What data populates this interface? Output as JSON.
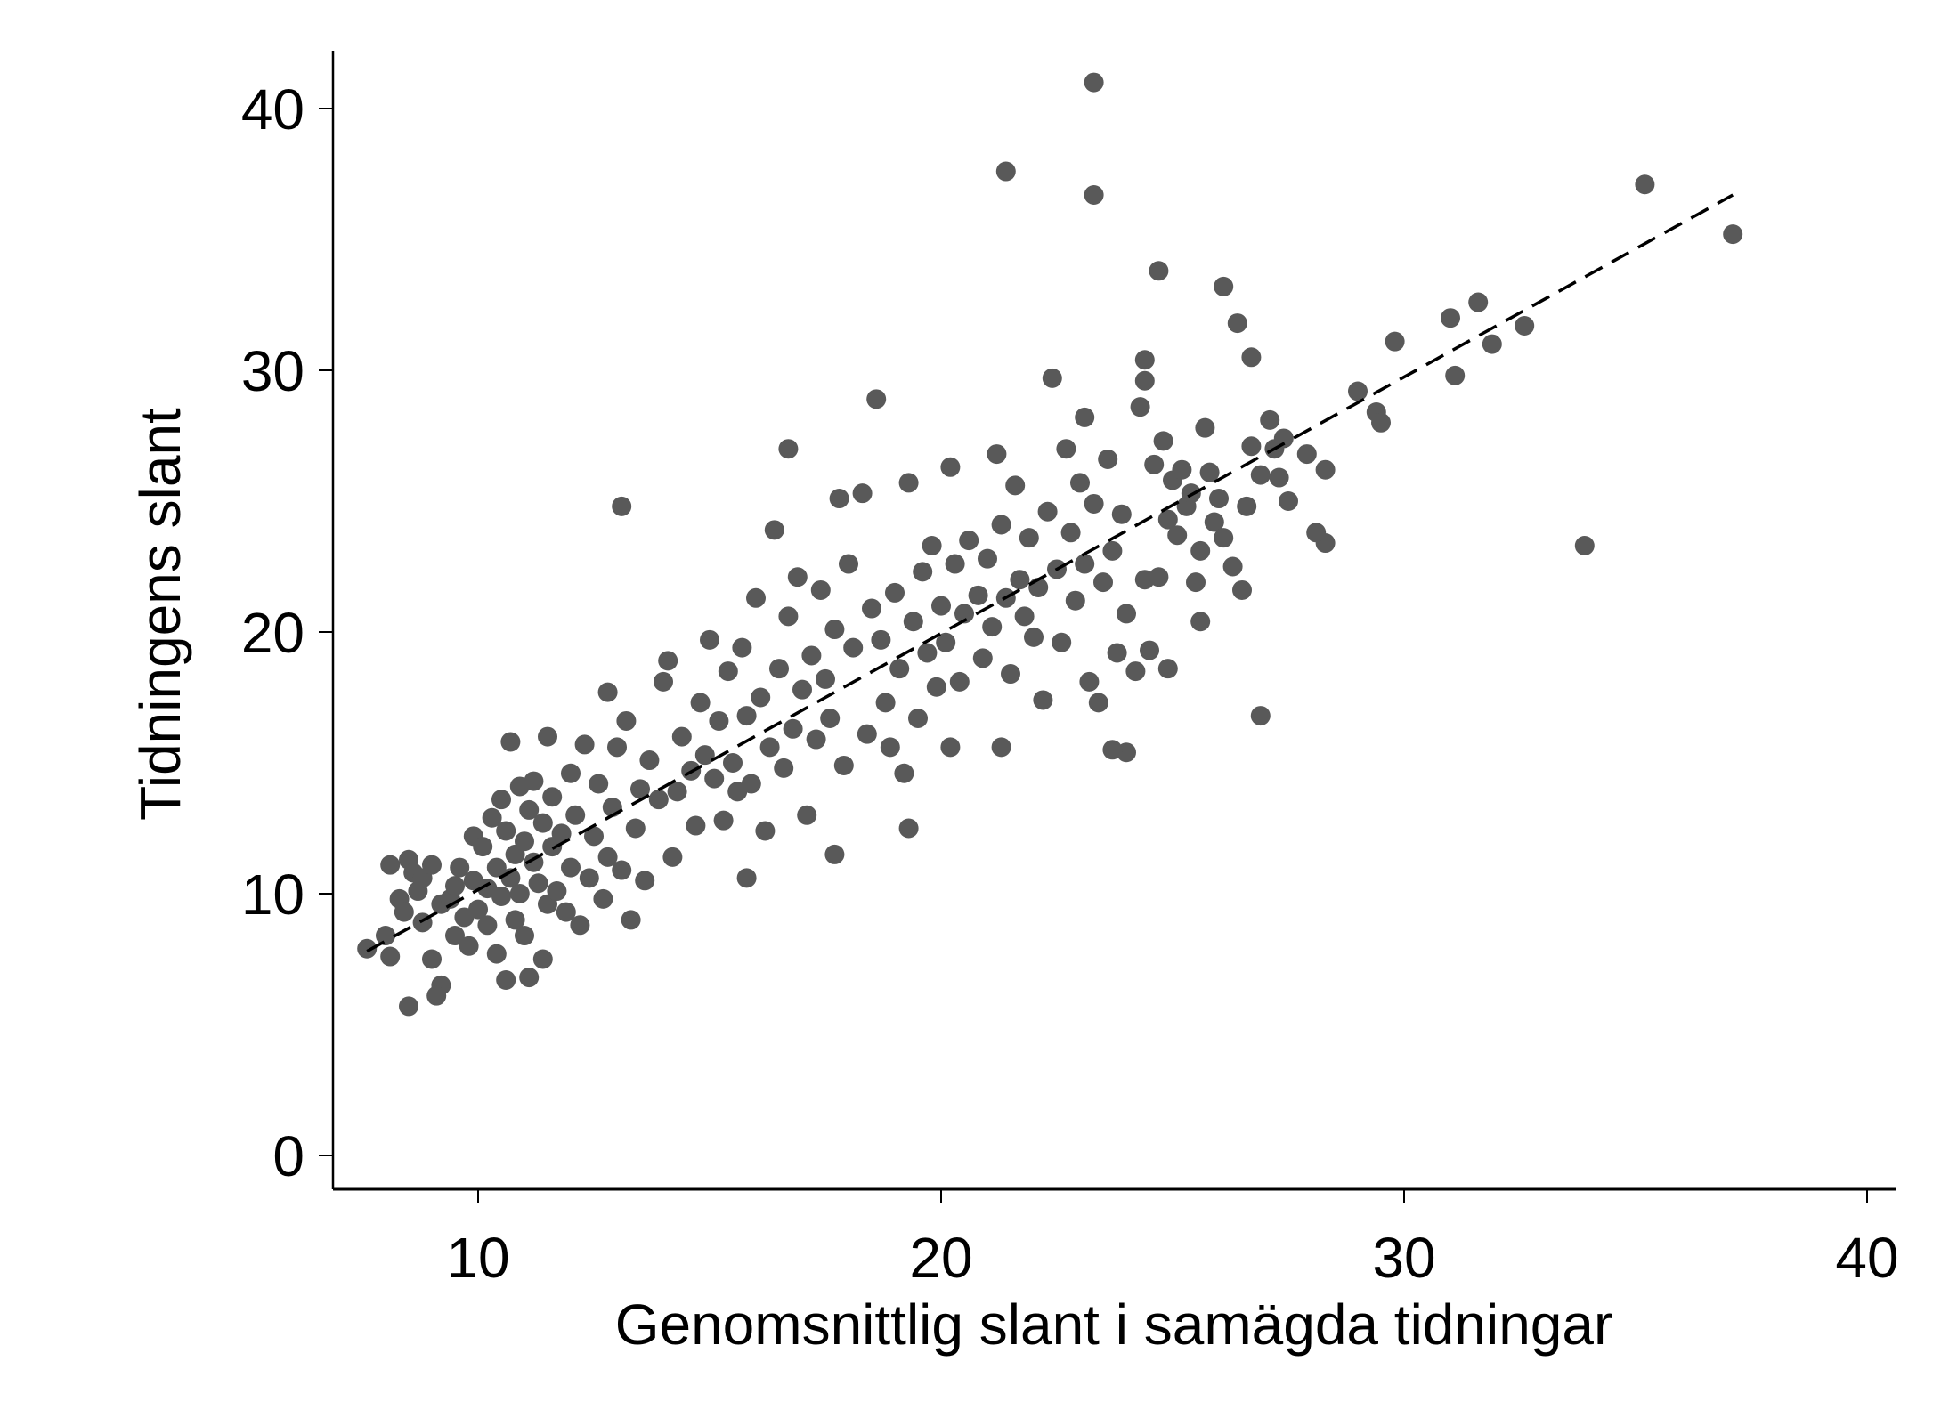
{
  "chart_data": {
    "type": "scatter",
    "title": "",
    "xlabel": "Genomsnittlig slant i samägda tidningar",
    "ylabel": "Tidningens slant",
    "xlim": [
      7,
      40.5
    ],
    "ylim": [
      -1.5,
      42
    ],
    "xticks": [
      10,
      20,
      30,
      40
    ],
    "yticks": [
      0,
      10,
      20,
      30,
      40
    ],
    "xtick_labels": [
      "10",
      "20",
      "30",
      "40"
    ],
    "ytick_labels": [
      "0",
      "10",
      "20",
      "30",
      "40"
    ],
    "grid": false,
    "legend": "none",
    "colors": {
      "points": "#595959",
      "fit_line": "#000000"
    },
    "fit_line": {
      "style": "dashed",
      "x": [
        7.6,
        37.1
      ],
      "y": [
        7.8,
        36.7
      ]
    },
    "points": [
      [
        23.3,
        41.0
      ],
      [
        21.4,
        37.6
      ],
      [
        23.3,
        36.7
      ],
      [
        35.2,
        37.1
      ],
      [
        37.1,
        35.2
      ],
      [
        24.7,
        33.8
      ],
      [
        26.1,
        33.2
      ],
      [
        31.6,
        32.6
      ],
      [
        31.0,
        32.0
      ],
      [
        32.6,
        31.7
      ],
      [
        31.9,
        31.0
      ],
      [
        29.8,
        31.1
      ],
      [
        31.1,
        29.8
      ],
      [
        29.0,
        29.2
      ],
      [
        29.4,
        28.4
      ],
      [
        29.5,
        28.0
      ],
      [
        18.6,
        28.9
      ],
      [
        22.4,
        29.7
      ],
      [
        24.4,
        30.4
      ],
      [
        24.4,
        29.6
      ],
      [
        26.7,
        30.5
      ],
      [
        26.4,
        31.8
      ],
      [
        23.1,
        28.2
      ],
      [
        16.7,
        27.0
      ],
      [
        13.1,
        24.8
      ],
      [
        33.9,
        23.3
      ],
      [
        26.9,
        16.8
      ],
      [
        24.0,
        15.4
      ],
      [
        23.7,
        15.5
      ],
      [
        15.8,
        10.6
      ],
      [
        8.5,
        5.7
      ],
      [
        9.2,
        6.5
      ],
      [
        17.7,
        11.5
      ],
      [
        19.3,
        12.5
      ],
      [
        28.3,
        23.4
      ],
      [
        28.1,
        23.8
      ],
      [
        25.6,
        20.4
      ],
      [
        24.9,
        18.6
      ],
      [
        21.3,
        15.6
      ],
      [
        20.2,
        15.6
      ],
      [
        7.6,
        7.9
      ],
      [
        8.0,
        8.4
      ],
      [
        8.1,
        7.6
      ],
      [
        8.1,
        11.1
      ],
      [
        8.3,
        9.8
      ],
      [
        8.4,
        9.3
      ],
      [
        8.5,
        11.3
      ],
      [
        8.6,
        10.8
      ],
      [
        8.7,
        10.1
      ],
      [
        8.8,
        10.6
      ],
      [
        8.8,
        8.9
      ],
      [
        9.0,
        11.1
      ],
      [
        9.0,
        7.5
      ],
      [
        9.1,
        6.1
      ],
      [
        9.2,
        9.6
      ],
      [
        9.4,
        9.8
      ],
      [
        9.5,
        10.3
      ],
      [
        9.5,
        8.4
      ],
      [
        9.6,
        11.0
      ],
      [
        9.7,
        9.1
      ],
      [
        9.8,
        8.0
      ],
      [
        9.9,
        10.5
      ],
      [
        9.9,
        12.2
      ],
      [
        10.0,
        9.4
      ],
      [
        10.1,
        11.8
      ],
      [
        10.2,
        10.2
      ],
      [
        10.2,
        8.8
      ],
      [
        10.3,
        12.9
      ],
      [
        10.4,
        7.7
      ],
      [
        10.4,
        11.0
      ],
      [
        10.5,
        9.9
      ],
      [
        10.5,
        13.6
      ],
      [
        10.6,
        6.7
      ],
      [
        10.6,
        12.4
      ],
      [
        10.7,
        10.6
      ],
      [
        10.7,
        15.8
      ],
      [
        10.8,
        11.5
      ],
      [
        10.8,
        9.0
      ],
      [
        10.9,
        14.1
      ],
      [
        10.9,
        10.0
      ],
      [
        11.0,
        12.0
      ],
      [
        11.0,
        8.4
      ],
      [
        11.1,
        13.2
      ],
      [
        11.1,
        6.8
      ],
      [
        11.2,
        11.2
      ],
      [
        11.2,
        14.3
      ],
      [
        11.3,
        10.4
      ],
      [
        11.4,
        12.7
      ],
      [
        11.4,
        7.5
      ],
      [
        11.5,
        9.6
      ],
      [
        11.5,
        16.0
      ],
      [
        11.6,
        11.8
      ],
      [
        11.6,
        13.7
      ],
      [
        11.7,
        10.1
      ],
      [
        11.8,
        12.3
      ],
      [
        11.9,
        9.3
      ],
      [
        12.0,
        14.6
      ],
      [
        12.0,
        11.0
      ],
      [
        12.1,
        13.0
      ],
      [
        12.2,
        8.8
      ],
      [
        12.3,
        15.7
      ],
      [
        12.4,
        10.6
      ],
      [
        12.5,
        12.2
      ],
      [
        12.6,
        14.2
      ],
      [
        12.7,
        9.8
      ],
      [
        12.8,
        11.4
      ],
      [
        12.8,
        17.7
      ],
      [
        12.9,
        13.3
      ],
      [
        13.0,
        15.6
      ],
      [
        13.1,
        10.9
      ],
      [
        13.2,
        16.6
      ],
      [
        13.3,
        9.0
      ],
      [
        13.4,
        12.5
      ],
      [
        13.5,
        14.0
      ],
      [
        13.6,
        10.5
      ],
      [
        13.7,
        15.1
      ],
      [
        13.9,
        13.6
      ],
      [
        14.0,
        18.1
      ],
      [
        14.1,
        18.9
      ],
      [
        14.2,
        11.4
      ],
      [
        14.3,
        13.9
      ],
      [
        14.4,
        16.0
      ],
      [
        14.6,
        14.7
      ],
      [
        14.7,
        12.6
      ],
      [
        14.8,
        17.3
      ],
      [
        14.9,
        15.3
      ],
      [
        15.0,
        19.7
      ],
      [
        15.1,
        14.4
      ],
      [
        15.2,
        16.6
      ],
      [
        15.3,
        12.8
      ],
      [
        15.4,
        18.5
      ],
      [
        15.5,
        15.0
      ],
      [
        15.6,
        13.9
      ],
      [
        15.7,
        19.4
      ],
      [
        15.8,
        16.8
      ],
      [
        15.9,
        14.2
      ],
      [
        16.0,
        21.3
      ],
      [
        16.1,
        17.5
      ],
      [
        16.2,
        12.4
      ],
      [
        16.3,
        15.6
      ],
      [
        16.4,
        23.9
      ],
      [
        16.5,
        18.6
      ],
      [
        16.6,
        14.8
      ],
      [
        16.7,
        20.6
      ],
      [
        16.8,
        16.3
      ],
      [
        16.9,
        22.1
      ],
      [
        17.0,
        17.8
      ],
      [
        17.1,
        13.0
      ],
      [
        17.2,
        19.1
      ],
      [
        17.3,
        15.9
      ],
      [
        17.4,
        21.6
      ],
      [
        17.5,
        18.2
      ],
      [
        17.6,
        16.7
      ],
      [
        17.7,
        20.1
      ],
      [
        17.8,
        25.1
      ],
      [
        17.9,
        14.9
      ],
      [
        18.0,
        22.6
      ],
      [
        18.1,
        19.4
      ],
      [
        18.3,
        25.3
      ],
      [
        18.4,
        16.1
      ],
      [
        18.5,
        20.9
      ],
      [
        18.7,
        19.7
      ],
      [
        18.8,
        17.3
      ],
      [
        18.9,
        15.6
      ],
      [
        19.0,
        21.5
      ],
      [
        19.1,
        18.6
      ],
      [
        19.2,
        14.6
      ],
      [
        19.3,
        25.7
      ],
      [
        19.4,
        20.4
      ],
      [
        19.5,
        16.7
      ],
      [
        19.6,
        22.3
      ],
      [
        19.7,
        19.2
      ],
      [
        19.8,
        23.3
      ],
      [
        19.9,
        17.9
      ],
      [
        20.0,
        21.0
      ],
      [
        20.1,
        19.6
      ],
      [
        20.2,
        26.3
      ],
      [
        20.3,
        22.6
      ],
      [
        20.4,
        18.1
      ],
      [
        20.5,
        20.7
      ],
      [
        20.6,
        23.5
      ],
      [
        20.8,
        21.4
      ],
      [
        20.9,
        19.0
      ],
      [
        21.0,
        22.8
      ],
      [
        21.1,
        20.2
      ],
      [
        21.2,
        26.8
      ],
      [
        21.3,
        24.1
      ],
      [
        21.4,
        21.3
      ],
      [
        21.5,
        18.4
      ],
      [
        21.6,
        25.6
      ],
      [
        21.7,
        22.0
      ],
      [
        21.8,
        20.6
      ],
      [
        21.9,
        23.6
      ],
      [
        22.0,
        19.8
      ],
      [
        22.1,
        21.7
      ],
      [
        22.2,
        17.4
      ],
      [
        22.3,
        24.6
      ],
      [
        22.5,
        22.4
      ],
      [
        22.6,
        19.6
      ],
      [
        22.7,
        27.0
      ],
      [
        22.8,
        23.8
      ],
      [
        22.9,
        21.2
      ],
      [
        23.0,
        25.7
      ],
      [
        23.1,
        22.6
      ],
      [
        23.2,
        18.1
      ],
      [
        23.3,
        24.9
      ],
      [
        23.4,
        17.3
      ],
      [
        23.5,
        21.9
      ],
      [
        23.6,
        26.6
      ],
      [
        23.7,
        23.1
      ],
      [
        23.8,
        19.2
      ],
      [
        23.9,
        24.5
      ],
      [
        24.0,
        20.7
      ],
      [
        24.2,
        18.5
      ],
      [
        24.3,
        28.6
      ],
      [
        24.4,
        22.0
      ],
      [
        24.5,
        19.3
      ],
      [
        24.6,
        26.4
      ],
      [
        24.7,
        22.1
      ],
      [
        24.8,
        27.3
      ],
      [
        24.9,
        24.3
      ],
      [
        25.0,
        25.8
      ],
      [
        25.1,
        23.7
      ],
      [
        25.2,
        26.2
      ],
      [
        25.3,
        24.8
      ],
      [
        25.4,
        25.3
      ],
      [
        25.5,
        21.9
      ],
      [
        25.6,
        23.1
      ],
      [
        25.7,
        27.8
      ],
      [
        25.8,
        26.1
      ],
      [
        25.9,
        24.2
      ],
      [
        26.0,
        25.1
      ],
      [
        26.1,
        23.6
      ],
      [
        26.3,
        22.5
      ],
      [
        26.5,
        21.6
      ],
      [
        26.6,
        24.8
      ],
      [
        26.7,
        27.1
      ],
      [
        26.9,
        26.0
      ],
      [
        27.1,
        28.1
      ],
      [
        27.2,
        27.0
      ],
      [
        27.3,
        25.9
      ],
      [
        27.4,
        27.4
      ],
      [
        27.5,
        25.0
      ],
      [
        27.9,
        26.8
      ],
      [
        28.3,
        26.2
      ]
    ]
  }
}
